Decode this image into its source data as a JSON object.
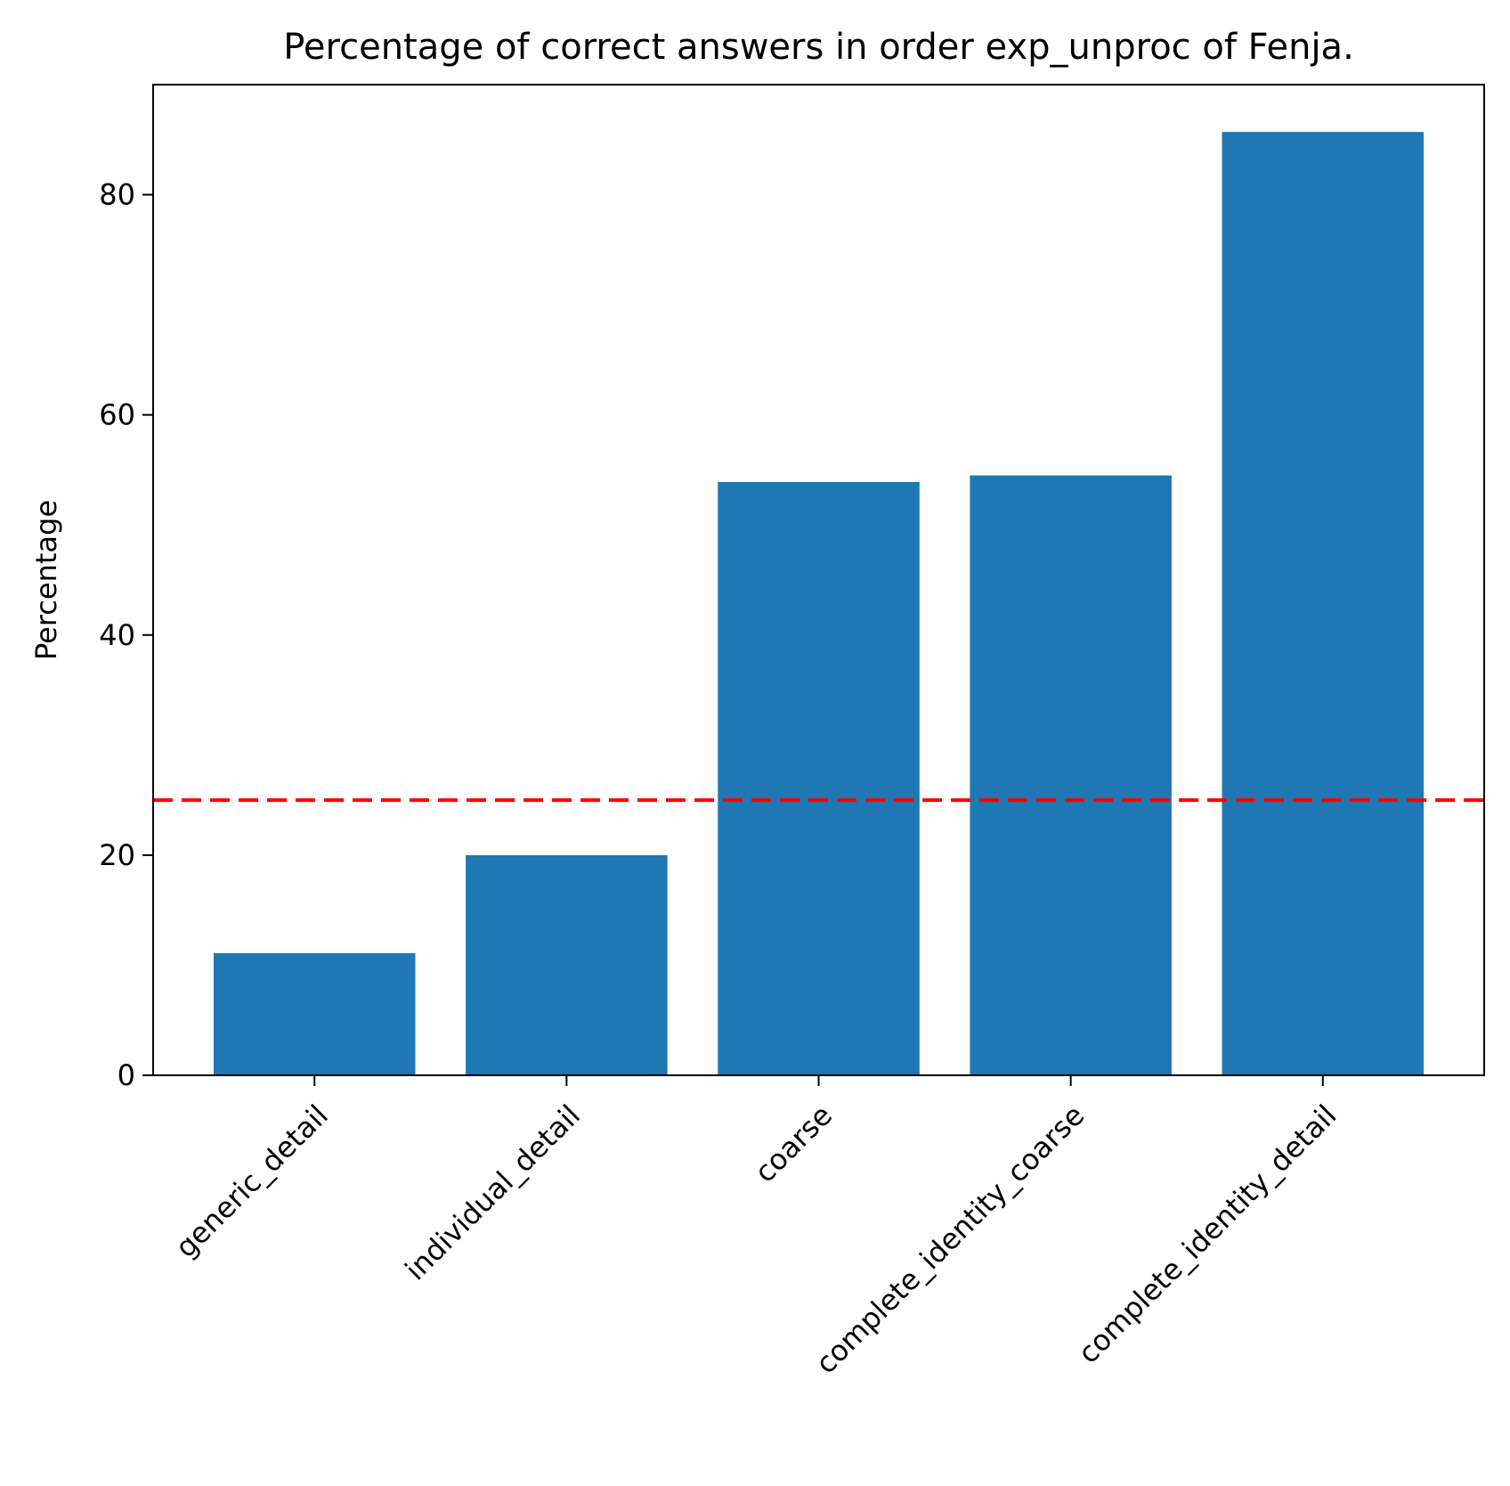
{
  "chart_data": {
    "type": "bar",
    "title": "Percentage of correct answers in order exp_unproc of Fenja.",
    "xlabel": "",
    "ylabel": "Percentage",
    "categories": [
      "generic_detail",
      "individual_detail",
      "coarse",
      "complete_identity_coarse",
      "complete_identity_detail"
    ],
    "values": [
      11.1,
      20.0,
      53.9,
      54.5,
      85.7
    ],
    "ylim": [
      0,
      90
    ],
    "yticks": [
      0,
      20,
      40,
      60,
      80
    ],
    "reference_line": {
      "y": 25,
      "style": "dashed",
      "color": "#ff0000"
    },
    "bar_color": "#1f77b4",
    "grid": false,
    "legend": "none"
  }
}
